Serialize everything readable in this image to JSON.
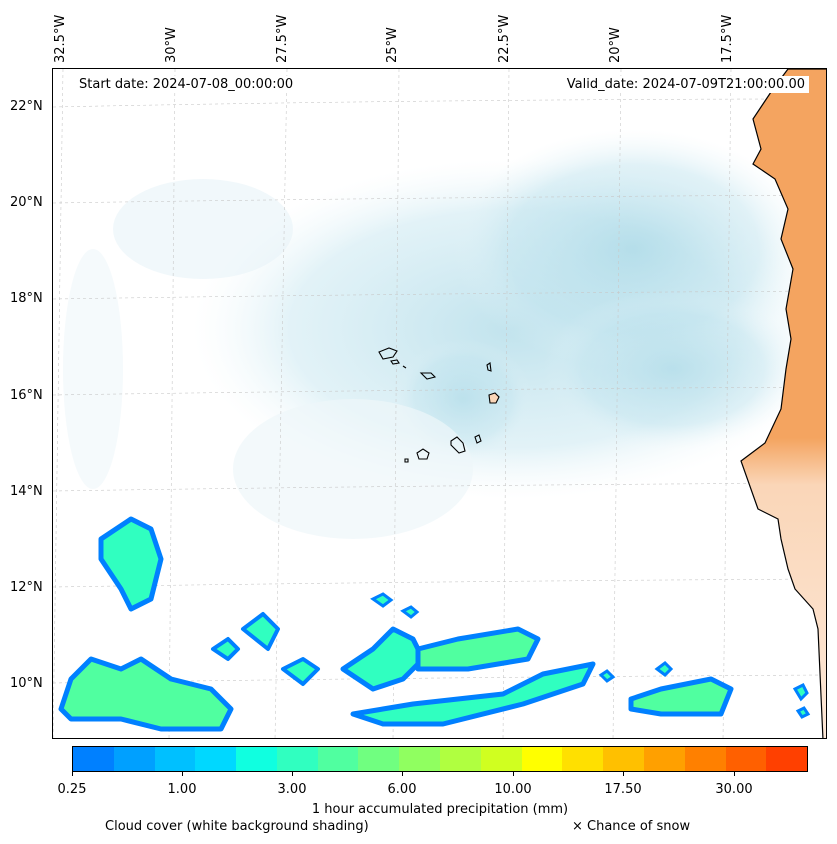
{
  "map": {
    "start_date": "Start date: 2024-07-08_00:00:00",
    "valid_date": "Valid_date: 2024-07-09T21:00:00.00",
    "lon_labels": [
      "32.5°W",
      "30°W",
      "27.5°W",
      "25°W",
      "22.5°W",
      "20°W",
      "17.5°W"
    ],
    "lat_labels": [
      "22°N",
      "20°N",
      "18°N",
      "16°N",
      "14°N",
      "12°N",
      "10°N"
    ],
    "colors": {
      "cloud": "#a8d8e6",
      "land_dry": "#f4a460",
      "coastline": "#000000"
    }
  },
  "colorbar": {
    "colors": [
      "#0080ff",
      "#00a0ff",
      "#00c0ff",
      "#00d8ff",
      "#10ffe0",
      "#30ffc0",
      "#50ffa0",
      "#70ff80",
      "#90ff60",
      "#b0ff40",
      "#d0ff20",
      "#ffff00",
      "#ffe000",
      "#ffc000",
      "#ffa000",
      "#ff8000",
      "#ff6000",
      "#ff4000"
    ],
    "tick_labels": [
      "0.25",
      "1.00",
      "3.00",
      "6.00",
      "10.00",
      "17.50",
      "30.00"
    ],
    "label": "1 hour accumulated precipitation (mm)"
  },
  "legend": {
    "cloud_note": "Cloud cover (white background shading)",
    "snow_note": "× Chance of snow"
  }
}
